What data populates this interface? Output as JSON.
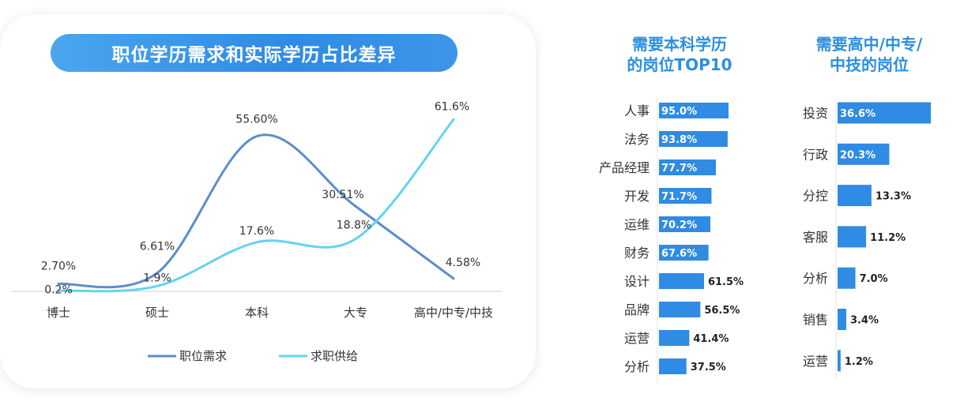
{
  "left_panel": {
    "title": "职位学历需求和实际学历占比差异"
  },
  "bar_panel_1": {
    "title_line1": "需要本科学历",
    "title_line2": "的岗位TOP10"
  },
  "bar_panel_2": {
    "title_line1": "需要高中/中专/",
    "title_line2": "中技的岗位"
  },
  "colors": {
    "demand": "#5b8ec9",
    "supply": "#62d3f2",
    "bar": "#2f8be3",
    "title": "#2b8fe0"
  },
  "chart_data": [
    {
      "type": "line",
      "title": "职位学历需求和实际学历占比差异",
      "categories": [
        "博士",
        "硕士",
        "本科",
        "大专",
        "高中/中专/中技"
      ],
      "series": [
        {
          "name": "职位需求",
          "values": [
            2.7,
            6.61,
            55.6,
            30.51,
            4.58
          ],
          "labels": [
            "2.70%",
            "6.61%",
            "55.60%",
            "30.51%",
            "4.58%"
          ]
        },
        {
          "name": "求职供给",
          "values": [
            0.2,
            1.9,
            17.6,
            18.8,
            61.6
          ],
          "labels": [
            "0.2%",
            "1.9%",
            "17.6%",
            "18.8%",
            "61.6%"
          ]
        }
      ],
      "ylim": [
        0,
        62
      ],
      "legend": "bottom",
      "grid": false
    },
    {
      "type": "bar",
      "orientation": "horizontal",
      "title": "需要本科学历的岗位TOP10",
      "categories": [
        "人事",
        "法务",
        "产品经理",
        "开发",
        "运维",
        "财务",
        "设计",
        "品牌",
        "运营",
        "分析"
      ],
      "values": [
        95.0,
        93.8,
        77.7,
        71.7,
        70.2,
        67.6,
        61.5,
        56.5,
        41.4,
        37.5
      ],
      "labels": [
        "95.0%",
        "93.8%",
        "77.7%",
        "71.7%",
        "70.2%",
        "67.6%",
        "61.5%",
        "56.5%",
        "41.4%",
        "37.5%"
      ]
    },
    {
      "type": "bar",
      "orientation": "horizontal",
      "title": "需要高中/中专/中技的岗位",
      "categories": [
        "投资",
        "行政",
        "分控",
        "客服",
        "分析",
        "销售",
        "运营"
      ],
      "values": [
        36.6,
        20.3,
        13.3,
        11.2,
        7.0,
        3.4,
        1.2
      ],
      "labels": [
        "36.6%",
        "20.3%",
        "13.3%",
        "11.2%",
        "7.0%",
        "3.4%",
        "1.2%"
      ]
    }
  ]
}
